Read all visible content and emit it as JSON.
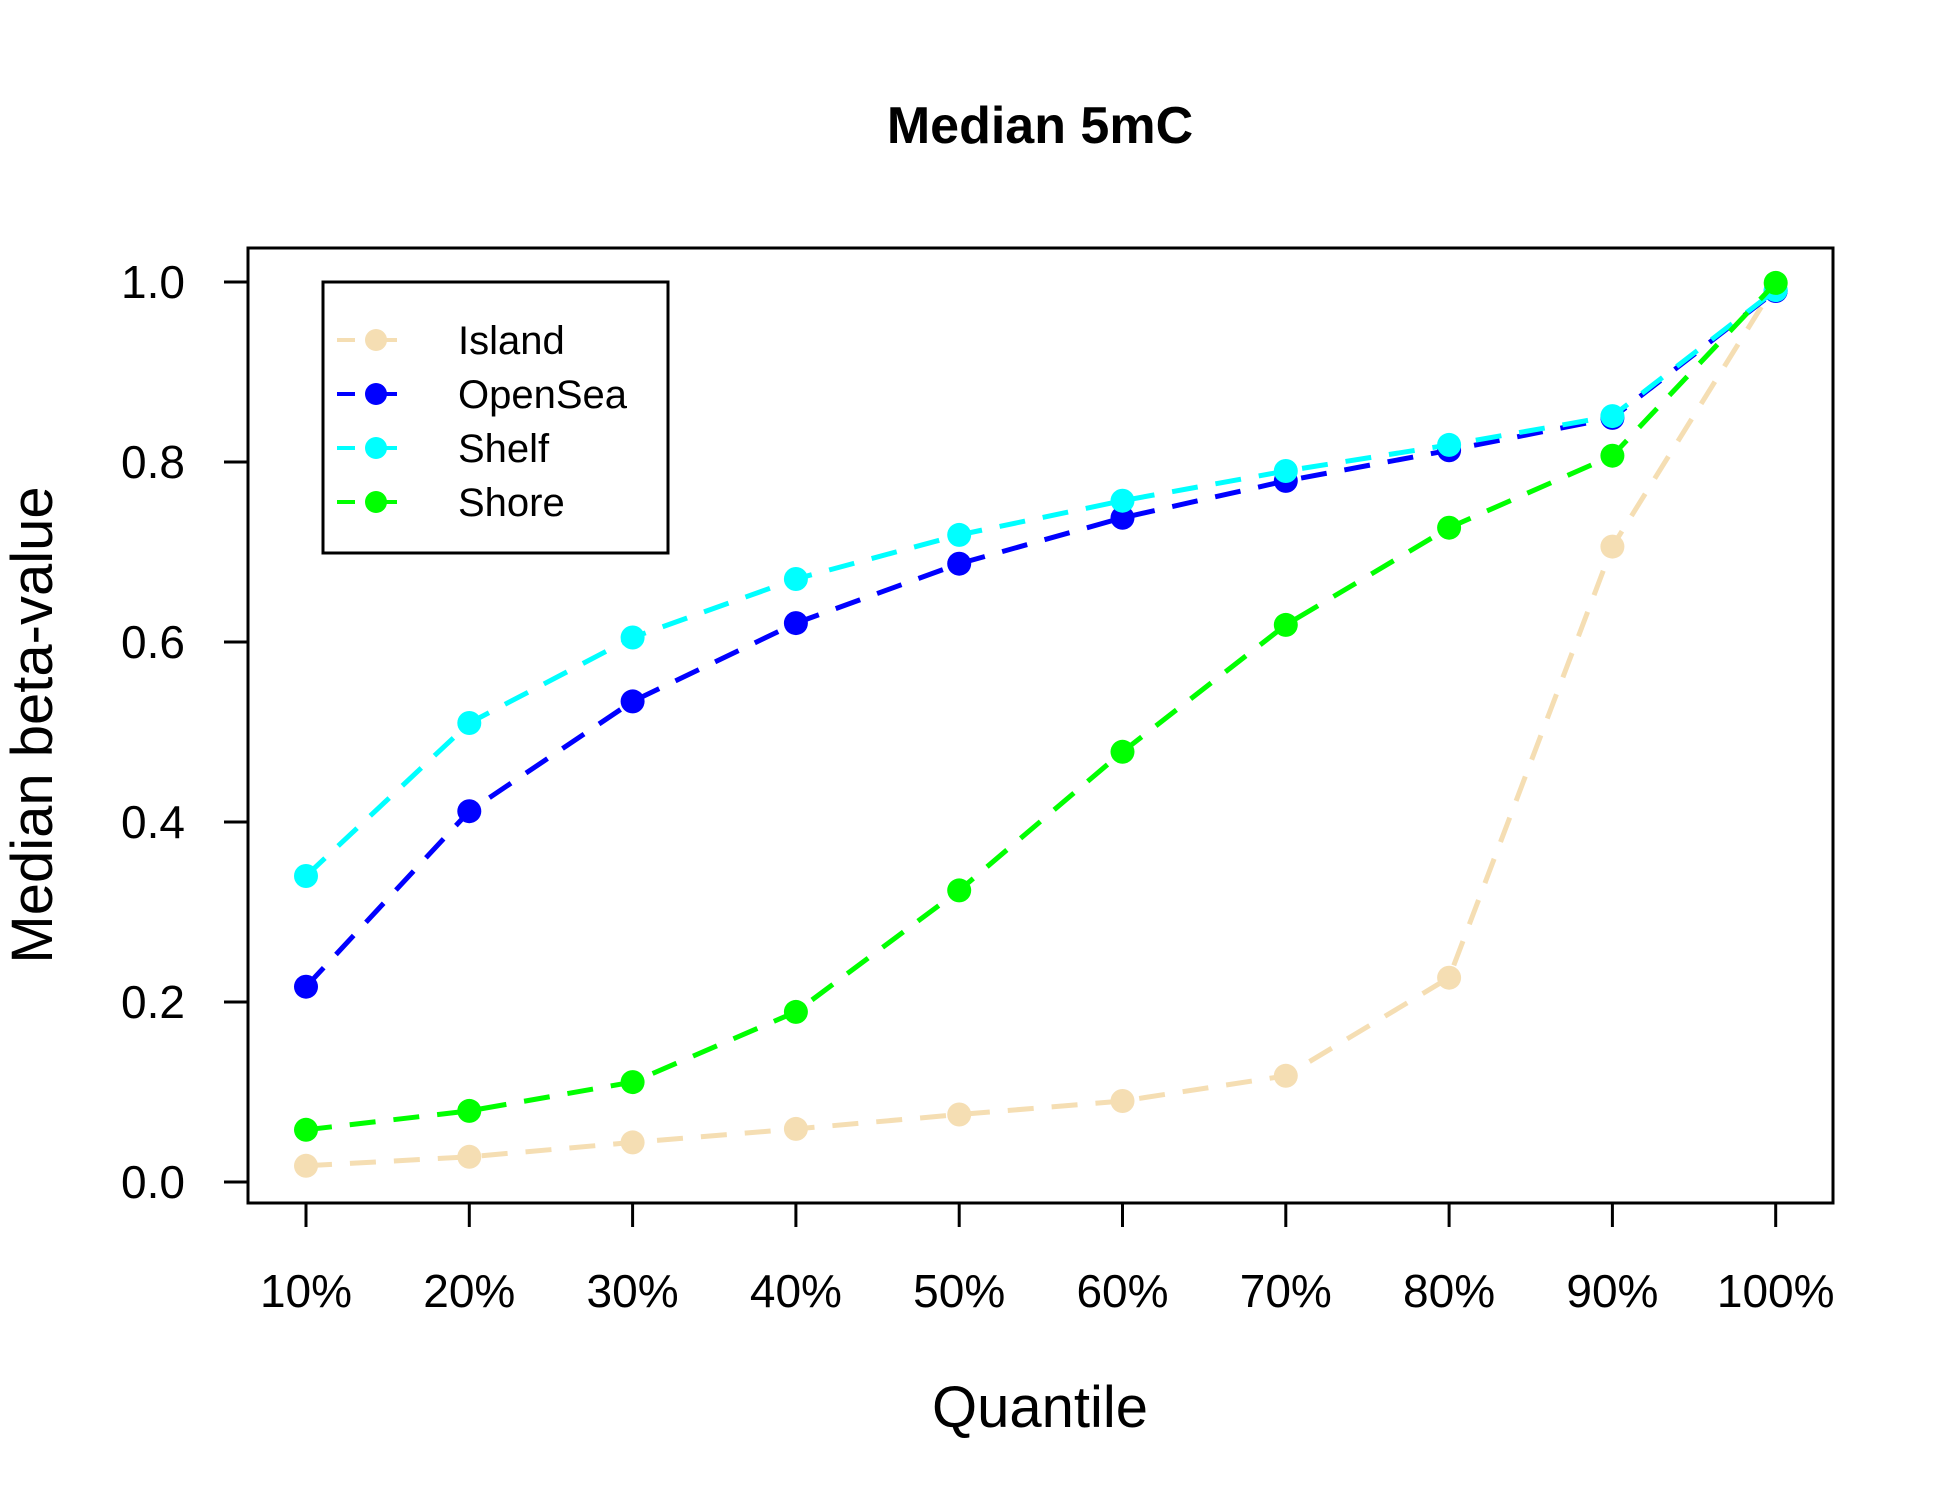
{
  "chart_data": {
    "type": "line",
    "title": "Median 5mC",
    "xlabel": "Quantile",
    "ylabel": "Median beta-value",
    "categories": [
      "10%",
      "20%",
      "30%",
      "40%",
      "50%",
      "60%",
      "70%",
      "80%",
      "90%",
      "100%"
    ],
    "yticks": [
      "0.0",
      "0.2",
      "0.4",
      "0.6",
      "0.8",
      "1.0"
    ],
    "ylim": [
      0,
      1
    ],
    "grid": false,
    "legend_position": "top-left",
    "series": [
      {
        "name": "Island",
        "color": "#F5DEB3",
        "values": [
          0.018,
          0.028,
          0.044,
          0.059,
          0.075,
          0.09,
          0.118,
          0.227,
          0.706,
          0.998
        ]
      },
      {
        "name": "OpenSea",
        "color": "#0000FF",
        "values": [
          0.217,
          0.412,
          0.534,
          0.621,
          0.687,
          0.738,
          0.779,
          0.813,
          0.849,
          0.99
        ]
      },
      {
        "name": "Shelf",
        "color": "#00FFFF",
        "values": [
          0.34,
          0.51,
          0.605,
          0.67,
          0.719,
          0.757,
          0.79,
          0.819,
          0.851,
          0.991
        ]
      },
      {
        "name": "Shore",
        "color": "#00FF00",
        "values": [
          0.058,
          0.079,
          0.111,
          0.189,
          0.324,
          0.478,
          0.619,
          0.727,
          0.807,
          0.999
        ]
      }
    ]
  }
}
